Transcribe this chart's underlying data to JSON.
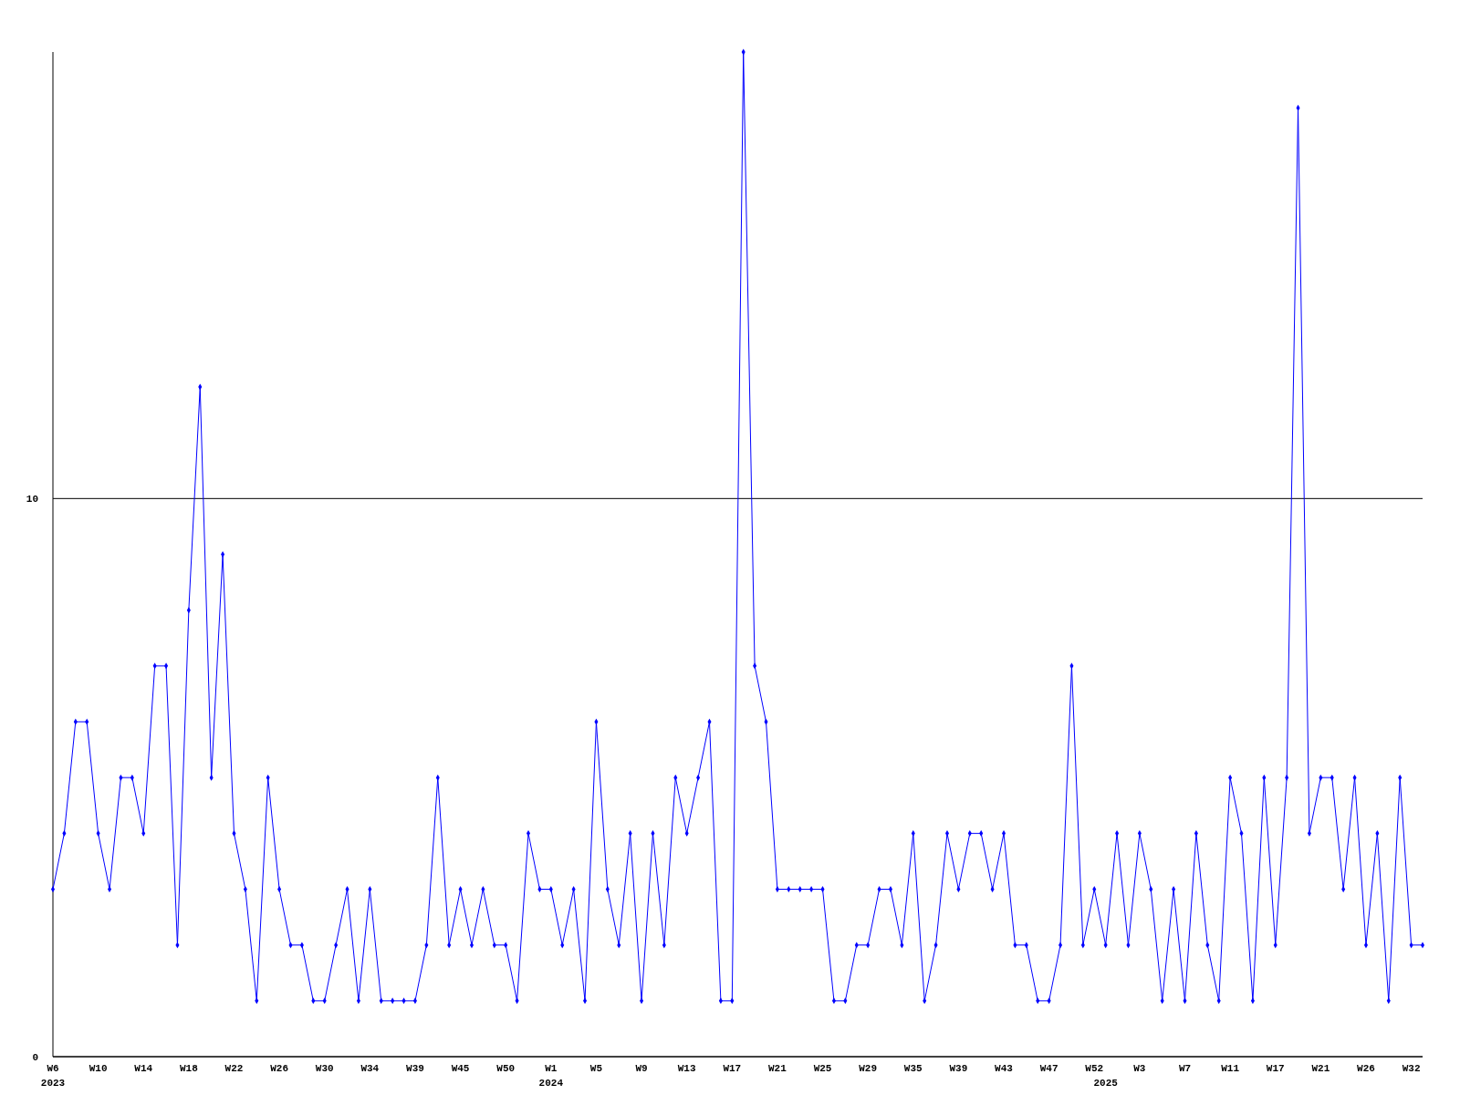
{
  "chart_data": {
    "type": "line",
    "categories": [
      "W6\n2023",
      null,
      null,
      null,
      "W10",
      null,
      null,
      null,
      "W14",
      null,
      null,
      null,
      "W18",
      null,
      null,
      null,
      "W22",
      null,
      null,
      null,
      "W26",
      null,
      null,
      null,
      "W30",
      null,
      null,
      null,
      "W34",
      null,
      null,
      null,
      "W39",
      null,
      null,
      null,
      "W45",
      null,
      null,
      null,
      "W50",
      null,
      null,
      null,
      "W1\n2024",
      null,
      null,
      null,
      "W5",
      null,
      null,
      null,
      "W9",
      null,
      null,
      null,
      "W13",
      null,
      null,
      null,
      "W17",
      null,
      null,
      null,
      "W21",
      null,
      null,
      null,
      "W25",
      null,
      null,
      null,
      "W29",
      null,
      null,
      null,
      "W35",
      null,
      null,
      null,
      "W39",
      null,
      null,
      null,
      "W43",
      null,
      null,
      null,
      "W47",
      null,
      null,
      null,
      "W52",
      "\n2025",
      null,
      null,
      "W3",
      null,
      null,
      null,
      "W7",
      null,
      null,
      null,
      "W11",
      null,
      null,
      null,
      "W17",
      null,
      null,
      null,
      "W21",
      null,
      null,
      null,
      "W26",
      null,
      null,
      null,
      "W32",
      null
    ],
    "series": [
      {
        "color": "#0000ff",
        "values": [
          3,
          4,
          6,
          6,
          4,
          3,
          5,
          5,
          4,
          7,
          7,
          2,
          8,
          12,
          5,
          9,
          4,
          3,
          1,
          5,
          3,
          2,
          2,
          1,
          1,
          2,
          3,
          1,
          3,
          1,
          1,
          1,
          1,
          2,
          5,
          2,
          3,
          2,
          3,
          2,
          2,
          1,
          4,
          3,
          3,
          2,
          3,
          1,
          6,
          3,
          2,
          4,
          1,
          4,
          2,
          5,
          4,
          5,
          6,
          1,
          1,
          18,
          7,
          6,
          3,
          3,
          3,
          3,
          3,
          1,
          1,
          2,
          2,
          3,
          3,
          2,
          4,
          1,
          2,
          4,
          3,
          4,
          4,
          3,
          4,
          2,
          2,
          1,
          1,
          2,
          7,
          2,
          3,
          2,
          4,
          2,
          4,
          3,
          1,
          3,
          1,
          4,
          2,
          1,
          5,
          4,
          1,
          5,
          2,
          5,
          17,
          4,
          5,
          5,
          3,
          5,
          2,
          4,
          1,
          5,
          2,
          2
        ]
      }
    ],
    "ylim": [
      0,
      18
    ],
    "yticks": [
      0,
      10
    ],
    "grid": "y",
    "marker": "diamond",
    "line_style": "solid"
  }
}
